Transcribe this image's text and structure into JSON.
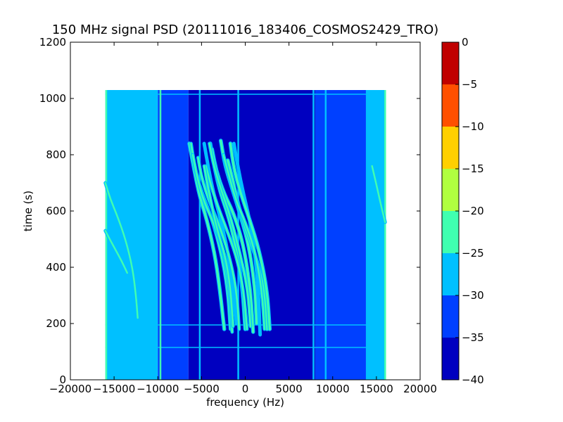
{
  "chart_data": {
    "type": "heatmap",
    "title": "150 MHz signal PSD (20111016_183406_COSMOS2429_TRO)",
    "xlabel": "frequency (Hz)",
    "ylabel": "time (s)",
    "xlim": [
      -20000,
      20000
    ],
    "ylim": [
      0,
      1200
    ],
    "xticks": [
      -20000,
      -15000,
      -10000,
      -5000,
      0,
      5000,
      10000,
      15000,
      20000
    ],
    "xtick_labels": [
      "−20000",
      "−15000",
      "−10000",
      "−5000",
      "0",
      "5000",
      "10000",
      "15000",
      "20000"
    ],
    "yticks": [
      0,
      200,
      400,
      600,
      800,
      1000,
      1200
    ],
    "ytick_labels": [
      "0",
      "200",
      "400",
      "600",
      "800",
      "1000",
      "1200"
    ],
    "data_extent": {
      "x": [
        -16000,
        16000
      ],
      "y": [
        0,
        1030
      ]
    },
    "colorbar": {
      "range": [
        -40,
        0
      ],
      "levels": [
        -40,
        -35,
        -30,
        -25,
        -20,
        -15,
        -10,
        -5,
        0
      ],
      "tick_labels": [
        "−40",
        "−35",
        "−30",
        "−25",
        "−20",
        "−15",
        "−10",
        "−5",
        "0"
      ],
      "colors": [
        "#0000c0",
        "#0040ff",
        "#00c0ff",
        "#40ffb0",
        "#b0ff40",
        "#ffd000",
        "#ff5000",
        "#c00000"
      ]
    },
    "background_levels": [
      {
        "x": [
          -16000,
          -10000
        ],
        "value": -28
      },
      {
        "x": [
          -10000,
          -6500
        ],
        "value": -32
      },
      {
        "x": [
          -6500,
          8000
        ],
        "value": -37
      },
      {
        "x": [
          8000,
          13800
        ],
        "value": -32
      },
      {
        "x": [
          13800,
          16000
        ],
        "value": -28
      }
    ],
    "vertical_lines": [
      {
        "x": -15900,
        "value": -24
      },
      {
        "x": -9700,
        "value": -24
      },
      {
        "x": -5200,
        "value": -27
      },
      {
        "x": -800,
        "value": -27
      },
      {
        "x": 7800,
        "value": -27
      },
      {
        "x": 9200,
        "value": -28
      },
      {
        "x": 14300,
        "value": -27
      },
      {
        "x": 16000,
        "value": -25
      }
    ],
    "horizontal_lines": [
      {
        "y": 1015,
        "value": -28
      },
      {
        "y": 195,
        "value": -28
      },
      {
        "y": 115,
        "value": -27
      }
    ],
    "doppler_traces": [
      {
        "x": [
          -4700,
          -4200,
          -3600,
          -2900,
          -2000,
          -1400,
          -1000
        ],
        "y": [
          840,
          750,
          660,
          580,
          460,
          330,
          200
        ],
        "value": -27
      },
      {
        "x": [
          -1300,
          -800,
          -200,
          500,
          1100,
          1500,
          1700
        ],
        "y": [
          840,
          750,
          660,
          570,
          450,
          320,
          160
        ],
        "value": -27
      },
      {
        "x": [
          -6400,
          -5800,
          -5200,
          -4400,
          -3500,
          -2900,
          -2400
        ],
        "y": [
          840,
          740,
          650,
          570,
          450,
          320,
          180
        ],
        "value": -22
      },
      {
        "x": [
          -2800,
          -2300,
          -1500,
          -600,
          400,
          1100,
          1300
        ],
        "y": [
          850,
          760,
          680,
          590,
          480,
          330,
          200
        ],
        "value": -22
      },
      {
        "x": [
          -4000,
          -3500,
          -2800,
          -1900,
          -900,
          -300,
          0
        ],
        "y": [
          840,
          750,
          660,
          580,
          450,
          320,
          180
        ],
        "value": -22
      },
      {
        "x": [
          -2000,
          -1500,
          -800,
          100,
          1200,
          2200,
          2500
        ],
        "y": [
          780,
          720,
          620,
          530,
          440,
          320,
          180
        ],
        "value": -22
      },
      {
        "x": [
          -3800,
          -3300,
          -2400,
          -1300,
          -200,
          600,
          900
        ],
        "y": [
          820,
          740,
          660,
          590,
          480,
          320,
          170
        ],
        "value": -22
      },
      {
        "x": [
          -1700,
          -1300,
          -500,
          500,
          1600,
          2500,
          2800
        ],
        "y": [
          840,
          750,
          660,
          570,
          460,
          320,
          180
        ],
        "value": -22
      },
      {
        "x": [
          -6200,
          -5700,
          -4900,
          -3900,
          -2800,
          -2000,
          -1700
        ],
        "y": [
          840,
          740,
          660,
          580,
          460,
          320,
          180
        ],
        "value": -24
      },
      {
        "x": [
          -4100,
          -3600,
          -2700,
          -1700,
          -600,
          300,
          600
        ],
        "y": [
          840,
          760,
          670,
          580,
          450,
          320,
          190
        ],
        "value": -24
      },
      {
        "x": [
          -6000,
          -5500,
          -4800,
          -3800,
          -2600,
          -1800,
          -1500
        ],
        "y": [
          800,
          720,
          640,
          570,
          470,
          320,
          170
        ],
        "value": -24
      },
      {
        "x": [
          -4500,
          -4000,
          -3200,
          -2200,
          -1000,
          -200,
          200
        ],
        "y": [
          760,
          700,
          620,
          540,
          440,
          320,
          180
        ],
        "value": -24
      },
      {
        "x": [
          -2500,
          -1900,
          -1100,
          0,
          1100,
          1900,
          2200
        ],
        "y": [
          800,
          730,
          640,
          560,
          460,
          320,
          180
        ],
        "value": -24
      },
      {
        "x": [
          -5400,
          -5000,
          -4200,
          -3100,
          -1900,
          -1000,
          -700
        ],
        "y": [
          790,
          720,
          640,
          560,
          450,
          320,
          180
        ],
        "value": -24
      },
      {
        "x": [
          -4700,
          -4300,
          -3700,
          -3100,
          -2300,
          -1700,
          -1400
        ],
        "y": [
          760,
          690,
          600,
          520,
          440,
          330,
          190
        ],
        "value": -24
      },
      {
        "x": [
          -16000,
          -15400,
          -14600,
          -13700,
          -12900,
          -12500,
          -12300
        ],
        "y": [
          700,
          640,
          580,
          500,
          400,
          300,
          220
        ],
        "value": -24
      },
      {
        "x": [
          -16000,
          -15500,
          -14800,
          -14100,
          -13500
        ],
        "y": [
          530,
          500,
          460,
          420,
          380
        ],
        "value": -24
      },
      {
        "x": [
          14500,
          15100,
          15600,
          16000
        ],
        "y": [
          760,
          680,
          610,
          560
        ],
        "value": -24
      }
    ]
  }
}
